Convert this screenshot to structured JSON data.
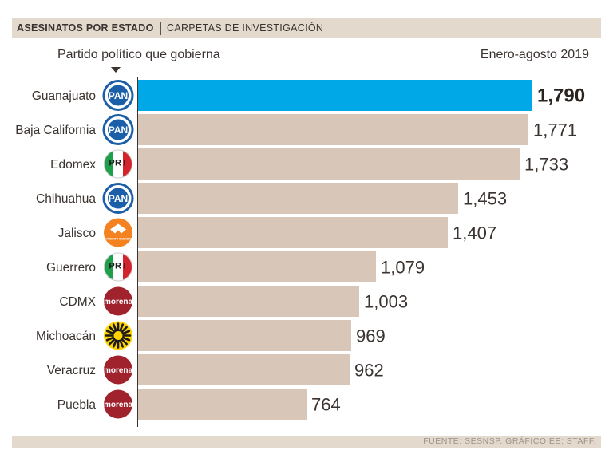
{
  "header": {
    "title": "ASESINATOS POR ESTADO",
    "subtitle": "CARPETAS DE INVESTIGACIÓN"
  },
  "party_caption": "Partido político que gobierna",
  "period": "Enero-agosto 2019",
  "footer": "FUENTE: SESNSP. GRÁFICO EE: STAFF.",
  "colors": {
    "bar": "#d8c7b8",
    "highlight_bar": "#00a8e8",
    "text": "#3a3330",
    "header_bg": "#e4d9cd",
    "pan_blue": "#1a5fa8",
    "pri_green": "#1f9e4b",
    "pri_red": "#d4242b",
    "mc_orange": "#f58220",
    "morena_maroon": "#a0222c",
    "prd_yellow": "#ffd200"
  },
  "party_logos": {
    "PAN": {
      "text": "PAN",
      "icon": "pan-logo-icon"
    },
    "PRI": {
      "text": "PRI",
      "icon": "pri-logo-icon"
    },
    "MC": {
      "text": "MOVIMIENTO CIUDADANO",
      "icon": "movimiento-ciudadano-logo-icon"
    },
    "MORENA": {
      "text": "morena",
      "icon": "morena-logo-icon"
    },
    "PRD": {
      "text": "",
      "icon": "prd-logo-icon"
    }
  },
  "chart_data": {
    "type": "bar",
    "orientation": "horizontal",
    "title": "ASESINATOS POR ESTADO",
    "subtitle": "CARPETAS DE INVESTIGACIÓN",
    "xlabel": "",
    "ylabel": "",
    "xlim": [
      0,
      1790
    ],
    "categories": [
      "Guanajuato",
      "Baja California",
      "Edomex",
      "Chihuahua",
      "Jalisco",
      "Guerrero",
      "CDMX",
      "Michoacán",
      "Veracruz",
      "Puebla"
    ],
    "values": [
      1790,
      1771,
      1733,
      1453,
      1407,
      1079,
      1003,
      969,
      962,
      764
    ],
    "value_labels": [
      "1,790",
      "1,771",
      "1,733",
      "1,453",
      "1,407",
      "1,079",
      "1,003",
      "969",
      "962",
      "764"
    ],
    "parties": [
      "PAN",
      "PAN",
      "PRI",
      "PAN",
      "MC",
      "PRI",
      "MORENA",
      "PRD",
      "MORENA",
      "MORENA"
    ],
    "highlight_index": 0,
    "grid": false
  }
}
